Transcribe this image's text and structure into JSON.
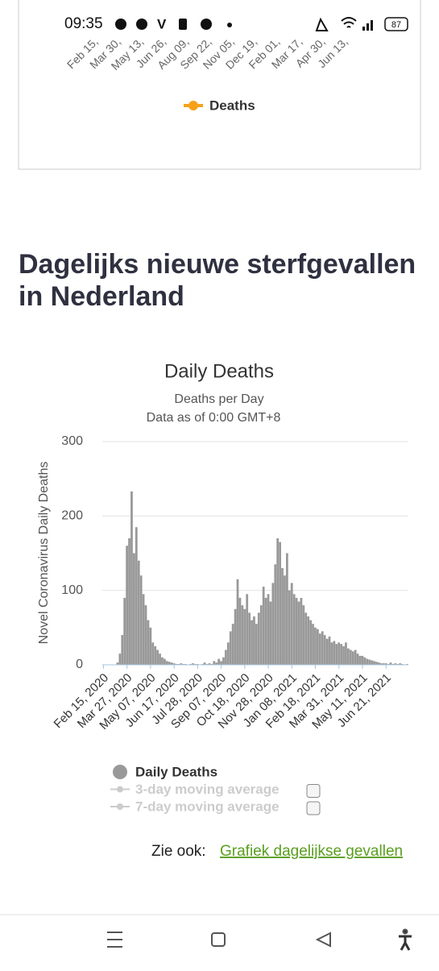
{
  "status_bar": {
    "time": "09:35",
    "battery": "87"
  },
  "top_chart": {
    "x_labels": [
      "Feb 15,",
      "Mar 30,",
      "May 13,",
      "Jun 26,",
      "Aug 09,",
      "Sep 22,",
      "Nov 05,",
      "Dec 19,",
      "Feb 01,",
      "Mar 17,",
      "Apr 30,",
      "Jun 13,"
    ],
    "legend": "Deaths",
    "legend_color": "#f7a11a"
  },
  "heading": "Dagelijks nieuwe sterfgevallen in Nederland",
  "chart_data": {
    "type": "bar",
    "title": "Daily Deaths",
    "subtitle": "Deaths per Day",
    "note": "Data as of 0:00 GMT+8",
    "y_label": "Novel Coronavirus Daily Deaths",
    "ylim": [
      0,
      300
    ],
    "yticks": [
      0,
      100,
      200,
      300
    ],
    "grid": true,
    "categories": [
      "Feb 15, 2020",
      null,
      null,
      null,
      null,
      null,
      null,
      null,
      null,
      null,
      "Mar 27, 2020",
      null,
      null,
      null,
      null,
      null,
      null,
      null,
      null,
      null,
      "May 07, 2020",
      null,
      null,
      null,
      null,
      null,
      null,
      null,
      null,
      null,
      "Jun 17, 2020",
      null,
      null,
      null,
      null,
      null,
      null,
      null,
      null,
      null,
      "Jul 28, 2020",
      null,
      null,
      null,
      null,
      null,
      null,
      null,
      null,
      null,
      "Sep 07, 2020",
      null,
      null,
      null,
      null,
      null,
      null,
      null,
      null,
      null,
      "Oct 18, 2020",
      null,
      null,
      null,
      null,
      null,
      null,
      null,
      null,
      null,
      "Nov 28, 2020",
      null,
      null,
      null,
      null,
      null,
      null,
      null,
      null,
      null,
      "Jan 08, 2021",
      null,
      null,
      null,
      null,
      null,
      null,
      null,
      null,
      null,
      "Feb 18, 2021",
      null,
      null,
      null,
      null,
      null,
      null,
      null,
      null,
      null,
      "Mar 31, 2021",
      null,
      null,
      null,
      null,
      null,
      null,
      null,
      null,
      null,
      "May 11, 2021",
      null,
      null,
      null,
      null,
      null,
      null,
      null,
      null,
      null,
      "Jun 21, 2021",
      null,
      null,
      null,
      null,
      null,
      null,
      null,
      null,
      null
    ],
    "series": [
      {
        "name": "Daily Deaths",
        "color": "#999999",
        "values": [
          0,
          0,
          0,
          0,
          0,
          0,
          3,
          15,
          40,
          90,
          160,
          170,
          233,
          150,
          185,
          140,
          120,
          95,
          80,
          60,
          50,
          30,
          25,
          20,
          15,
          10,
          8,
          5,
          4,
          3,
          2,
          1,
          1,
          2,
          1,
          1,
          0,
          1,
          2,
          1,
          1,
          0,
          1,
          3,
          1,
          2,
          1,
          5,
          3,
          8,
          5,
          10,
          20,
          30,
          45,
          55,
          75,
          115,
          90,
          80,
          75,
          95,
          70,
          60,
          65,
          55,
          70,
          80,
          105,
          90,
          95,
          85,
          110,
          135,
          170,
          165,
          130,
          120,
          150,
          100,
          110,
          95,
          90,
          85,
          90,
          80,
          70,
          65,
          60,
          55,
          50,
          48,
          42,
          45,
          40,
          35,
          38,
          30,
          32,
          28,
          30,
          28,
          25,
          30,
          22,
          20,
          18,
          20,
          15,
          12,
          12,
          10,
          8,
          7,
          6,
          5,
          4,
          3,
          2,
          2,
          2,
          1,
          3,
          1,
          2,
          1,
          2,
          1,
          0,
          1
        ]
      }
    ],
    "hidden_series": [
      {
        "name": "3-day moving average"
      },
      {
        "name": "7-day moving average"
      }
    ]
  },
  "footer": {
    "see_also": "Zie ook:",
    "link": "Grafiek dagelijkse gevallen"
  }
}
